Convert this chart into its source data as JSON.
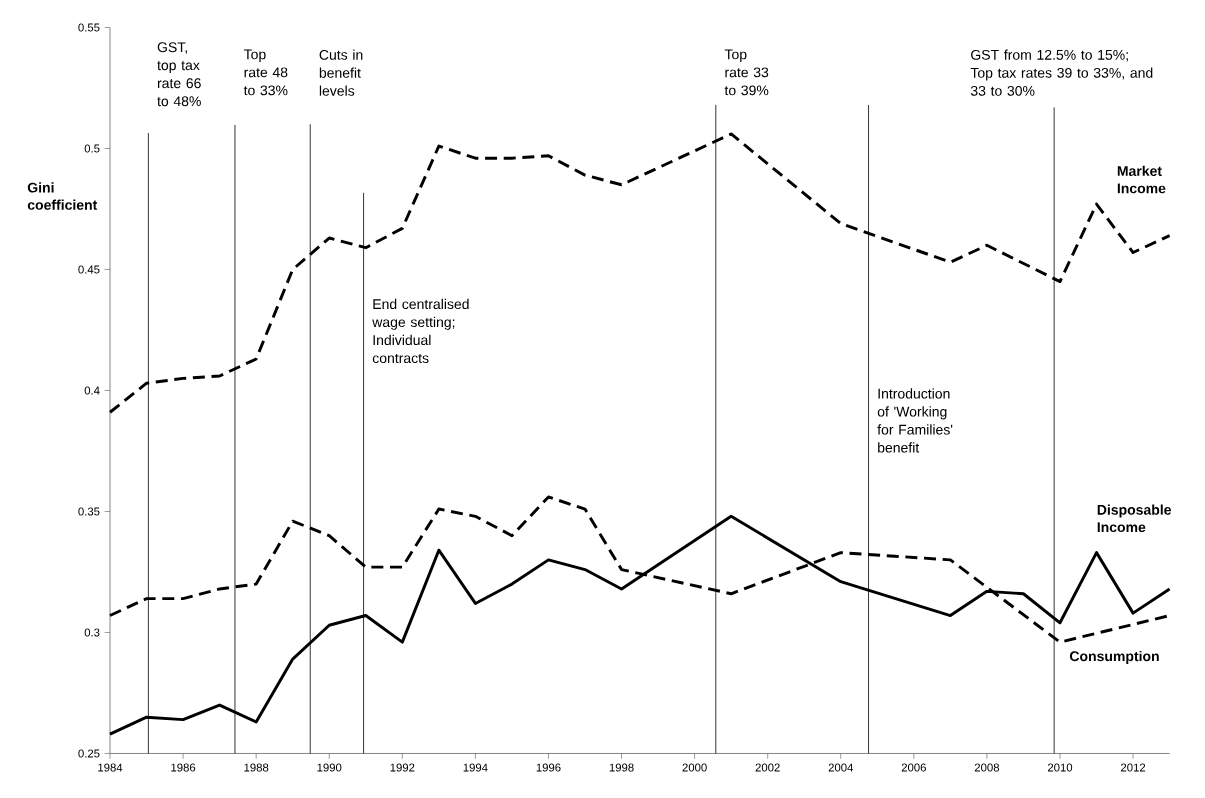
{
  "chart_data": {
    "type": "line",
    "ylabel": "Gini coefficient",
    "xlim": [
      1984,
      2013
    ],
    "xticks": [
      1984,
      1986,
      1988,
      1990,
      1992,
      1994,
      1996,
      1998,
      2000,
      2002,
      2004,
      2006,
      2008,
      2010,
      2012
    ],
    "ylim": [
      0.25,
      0.55
    ],
    "yticks": [
      0.25,
      0.3,
      0.35,
      0.4,
      0.45,
      0.5,
      0.55
    ],
    "grid": false,
    "marker": "none",
    "series": [
      {
        "name": "Market Income",
        "color": "#000000",
        "line_style": "dashed",
        "x": [
          1984,
          1985,
          1986,
          1987,
          1988,
          1989,
          1990,
          1991,
          1992,
          1993,
          1994,
          1995,
          1996,
          1997,
          1998,
          2001,
          2004,
          2007,
          2008,
          2010,
          2011,
          2012,
          2013
        ],
        "values": [
          0.391,
          0.403,
          0.405,
          0.406,
          0.413,
          0.45,
          0.463,
          0.459,
          0.467,
          0.501,
          0.496,
          0.496,
          0.497,
          0.489,
          0.485,
          0.506,
          0.469,
          0.453,
          0.46,
          0.445,
          0.477,
          0.457,
          0.464
        ]
      },
      {
        "name": "Disposable Income",
        "color": "#000000",
        "line_style": "solid",
        "x": [
          1984,
          1985,
          1986,
          1987,
          1988,
          1989,
          1990,
          1991,
          1992,
          1993,
          1994,
          1995,
          1996,
          1997,
          1998,
          2001,
          2004,
          2007,
          2008,
          2009,
          2010,
          2011,
          2012,
          2013
        ],
        "values": [
          0.258,
          0.265,
          0.264,
          0.27,
          0.263,
          0.289,
          0.303,
          0.307,
          0.296,
          0.334,
          0.312,
          0.32,
          0.33,
          0.326,
          0.318,
          0.348,
          0.321,
          0.307,
          0.317,
          0.316,
          0.304,
          0.333,
          0.308,
          0.318
        ]
      },
      {
        "name": "Consumption",
        "color": "#000000",
        "line_style": "dashed",
        "x": [
          1984,
          1985,
          1986,
          1987,
          1988,
          1989,
          1990,
          1991,
          1992,
          1993,
          1994,
          1995,
          1996,
          1997,
          1998,
          2001,
          2004,
          2007,
          2010,
          2013
        ],
        "values": [
          0.307,
          0.314,
          0.314,
          0.318,
          0.32,
          0.346,
          0.34,
          0.327,
          0.327,
          0.351,
          0.348,
          0.34,
          0.356,
          0.351,
          0.326,
          0.316,
          0.333,
          0.33,
          0.296,
          0.307
        ]
      }
    ],
    "ref_lines": [
      {
        "axis": "x",
        "value": 1985.05,
        "label": "GST, top tax rate 66 to 48%"
      },
      {
        "axis": "x",
        "value": 1987.42,
        "label": "Top rate 48 to 33%"
      },
      {
        "axis": "x",
        "value": 1989.48,
        "label": "Cuts in benefit levels"
      },
      {
        "axis": "x",
        "value": 1990.94,
        "label": "End centralised wage setting; Individual contracts"
      },
      {
        "axis": "x",
        "value": 2000.58,
        "label": "Top rate 33 to 39%"
      },
      {
        "axis": "x",
        "value": 2004.76,
        "label": "Introduction of 'Working for Families' benefit"
      },
      {
        "axis": "x",
        "value": 2009.84,
        "label": "GST from 12.5% to 15%; Top tax rates 39 to 33%, and 33 to 30%"
      }
    ]
  }
}
